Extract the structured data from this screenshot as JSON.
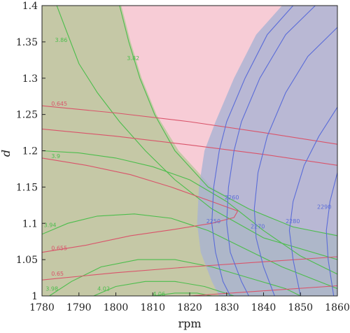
{
  "chart_data": {
    "type": "contour",
    "xlabel": "rpm",
    "ylabel": "d",
    "xlim": [
      1780,
      1860
    ],
    "ylim": [
      1.0,
      1.4
    ],
    "x_ticks": [
      "1780",
      "1790",
      "1800",
      "1810",
      "1820",
      "1830",
      "1840",
      "1850",
      "1860"
    ],
    "y_ticks": [
      "1",
      "1.05",
      "1.1",
      "1.15",
      "1.2",
      "1.25",
      "1.3",
      "1.35",
      "1.4"
    ],
    "colors": {
      "green_region": "#c5c8a6",
      "pink_region": "#f7ccd6",
      "blue_region": "#a8b2d4",
      "purple_region": "#c7b1d6",
      "green_line": "#4cbd4c",
      "red_line": "#d9546a",
      "blue_line": "#5a6cd8"
    },
    "regions": [
      {
        "id": "green",
        "points": [
          [
            1780,
            1.0
          ],
          [
            1780,
            1.4
          ],
          [
            1801.5,
            1.4
          ],
          [
            1804,
            1.35
          ],
          [
            1807,
            1.3
          ],
          [
            1811,
            1.25
          ],
          [
            1817,
            1.2
          ],
          [
            1826,
            1.15
          ],
          [
            1836,
            1.12
          ],
          [
            1845,
            1.1
          ],
          [
            1853,
            1.09
          ],
          [
            1860,
            1.085
          ],
          [
            1860,
            1.0
          ]
        ]
      },
      {
        "id": "blue",
        "points": [
          [
            1845,
            1.4
          ],
          [
            1838,
            1.36
          ],
          [
            1832,
            1.3
          ],
          [
            1827,
            1.24
          ],
          [
            1824,
            1.2
          ],
          [
            1822.5,
            1.15
          ],
          [
            1822,
            1.1
          ],
          [
            1823,
            1.06
          ],
          [
            1826,
            1.02
          ],
          [
            1828,
            1.0
          ],
          [
            1860,
            1.0
          ],
          [
            1860,
            1.4
          ]
        ]
      }
    ],
    "green_contours": [
      {
        "label": "3.86",
        "points": [
          [
            1784,
            1.4
          ],
          [
            1787,
            1.36
          ],
          [
            1790,
            1.32
          ],
          [
            1795,
            1.28
          ],
          [
            1801,
            1.24
          ],
          [
            1808,
            1.2
          ],
          [
            1816,
            1.16
          ],
          [
            1826,
            1.12
          ],
          [
            1840,
            1.08
          ],
          [
            1860,
            1.05
          ]
        ]
      },
      {
        "label": "3.82",
        "points": [
          [
            1801,
            1.4
          ],
          [
            1803.5,
            1.35
          ],
          [
            1806.5,
            1.3
          ],
          [
            1810.5,
            1.25
          ],
          [
            1816,
            1.2
          ],
          [
            1825,
            1.15
          ],
          [
            1836,
            1.12
          ],
          [
            1848,
            1.095
          ],
          [
            1860,
            1.083
          ]
        ]
      },
      {
        "label": "3.9",
        "points": [
          [
            1780,
            1.2
          ],
          [
            1790,
            1.197
          ],
          [
            1800,
            1.19
          ],
          [
            1810,
            1.178
          ],
          [
            1820,
            1.16
          ],
          [
            1830,
            1.13
          ],
          [
            1840,
            1.09
          ],
          [
            1850,
            1.055
          ],
          [
            1860,
            1.03
          ]
        ]
      },
      {
        "label": "3.94",
        "points": [
          [
            1780,
            1.085
          ],
          [
            1787,
            1.1
          ],
          [
            1795,
            1.11
          ],
          [
            1805,
            1.113
          ],
          [
            1815,
            1.107
          ],
          [
            1825,
            1.09
          ],
          [
            1835,
            1.065
          ],
          [
            1845,
            1.04
          ],
          [
            1855,
            1.02
          ],
          [
            1860,
            1.01
          ]
        ]
      },
      {
        "label": "3.98",
        "points": [
          [
            1782,
            1.0
          ],
          [
            1788,
            1.02
          ],
          [
            1796,
            1.04
          ],
          [
            1806,
            1.05
          ],
          [
            1816,
            1.05
          ],
          [
            1826,
            1.04
          ],
          [
            1836,
            1.025
          ],
          [
            1846,
            1.01
          ],
          [
            1850,
            1.0
          ]
        ]
      },
      {
        "label": "4.02",
        "points": [
          [
            1794,
            1.0
          ],
          [
            1800,
            1.013
          ],
          [
            1808,
            1.02
          ],
          [
            1816,
            1.02
          ],
          [
            1824,
            1.013
          ],
          [
            1832,
            1.0
          ]
        ]
      },
      {
        "label": "4.06",
        "points": [
          [
            1810,
            1.0
          ],
          [
            1816,
            1.004
          ],
          [
            1822,
            1.004
          ],
          [
            1826,
            1.0
          ]
        ]
      }
    ],
    "red_contours": [
      {
        "label": "0.645",
        "points": [
          [
            1780,
            1.262
          ],
          [
            1800,
            1.252
          ],
          [
            1820,
            1.24
          ],
          [
            1840,
            1.225
          ],
          [
            1860,
            1.209
          ]
        ]
      },
      {
        "label": "",
        "points": [
          [
            1780,
            1.23
          ],
          [
            1800,
            1.22
          ],
          [
            1820,
            1.208
          ],
          [
            1840,
            1.195
          ],
          [
            1860,
            1.18
          ]
        ]
      },
      {
        "label": "0.655",
        "points": [
          [
            1780,
            1.19
          ],
          [
            1792,
            1.18
          ],
          [
            1804,
            1.167
          ],
          [
            1815,
            1.15
          ],
          [
            1826,
            1.13
          ],
          [
            1833,
            1.117
          ],
          [
            1832,
            1.108
          ],
          [
            1826,
            1.1
          ],
          [
            1815,
            1.091
          ],
          [
            1804,
            1.083
          ],
          [
            1792,
            1.07
          ],
          [
            1780,
            1.06
          ]
        ]
      },
      {
        "label": "0.65",
        "points": [
          [
            1780,
            1.022
          ],
          [
            1800,
            1.032
          ],
          [
            1820,
            1.04
          ],
          [
            1840,
            1.047
          ],
          [
            1860,
            1.054
          ]
        ]
      },
      {
        "label": "",
        "points": [
          [
            1820,
            1.0
          ],
          [
            1840,
            1.007
          ],
          [
            1860,
            1.014
          ]
        ]
      }
    ],
    "blue_contours": [
      {
        "label": "2260",
        "points": [
          [
            1848,
            1.4
          ],
          [
            1841,
            1.36
          ],
          [
            1835,
            1.3
          ],
          [
            1830,
            1.24
          ],
          [
            1828,
            1.2
          ],
          [
            1826.5,
            1.15
          ],
          [
            1826,
            1.1
          ],
          [
            1827,
            1.06
          ],
          [
            1829,
            1.02
          ],
          [
            1831,
            1.0
          ]
        ]
      },
      {
        "label": "2250",
        "points": [
          [
            1854,
            1.4
          ],
          [
            1846,
            1.36
          ],
          [
            1839,
            1.3
          ],
          [
            1834,
            1.24
          ],
          [
            1832,
            1.2
          ],
          [
            1830.5,
            1.15
          ],
          [
            1830,
            1.1
          ],
          [
            1831,
            1.06
          ],
          [
            1834,
            1.02
          ],
          [
            1836,
            1.0
          ]
        ]
      },
      {
        "label": "2270",
        "points": [
          [
            1860,
            1.37
          ],
          [
            1852,
            1.33
          ],
          [
            1846,
            1.28
          ],
          [
            1841,
            1.22
          ],
          [
            1838.5,
            1.17
          ],
          [
            1837.5,
            1.12
          ],
          [
            1838,
            1.08
          ],
          [
            1840,
            1.04
          ],
          [
            1843,
            1.0
          ]
        ]
      },
      {
        "label": "2280",
        "points": [
          [
            1860,
            1.26
          ],
          [
            1855,
            1.22
          ],
          [
            1851,
            1.18
          ],
          [
            1848,
            1.13
          ],
          [
            1847,
            1.09
          ],
          [
            1848,
            1.05
          ],
          [
            1850,
            1.0
          ]
        ]
      },
      {
        "label": "2290",
        "points": [
          [
            1860,
            1.17
          ],
          [
            1858,
            1.13
          ],
          [
            1857,
            1.09
          ],
          [
            1857.5,
            1.05
          ],
          [
            1859,
            1.0
          ]
        ]
      }
    ],
    "labels": [
      {
        "text": "3.86",
        "x": 1783.5,
        "y": 1.35,
        "color": "#4cbd4c"
      },
      {
        "text": "3.82",
        "x": 1803,
        "y": 1.325,
        "color": "#4cbd4c"
      },
      {
        "text": "3.9",
        "x": 1782.5,
        "y": 1.19,
        "color": "#4cbd4c"
      },
      {
        "text": "3.94",
        "x": 1780.5,
        "y": 1.095,
        "color": "#4cbd4c"
      },
      {
        "text": "3.98",
        "x": 1781,
        "y": 1.007,
        "color": "#4cbd4c"
      },
      {
        "text": "4.02",
        "x": 1795,
        "y": 1.007,
        "color": "#4cbd4c"
      },
      {
        "text": "4.06",
        "x": 1810,
        "y": 1.0,
        "color": "#4cbd4c"
      },
      {
        "text": "0.645",
        "x": 1782.5,
        "y": 1.262,
        "color": "#d9546a"
      },
      {
        "text": "0.655",
        "x": 1782.5,
        "y": 1.063,
        "color": "#d9546a"
      },
      {
        "text": "0.65",
        "x": 1782.5,
        "y": 1.028,
        "color": "#d9546a"
      },
      {
        "text": "2260",
        "x": 1829.5,
        "y": 1.133,
        "color": "#5a6cd8"
      },
      {
        "text": "2250",
        "x": 1824.5,
        "y": 1.1,
        "color": "#5a6cd8"
      },
      {
        "text": "2270",
        "x": 1836.5,
        "y": 1.093,
        "color": "#5a6cd8"
      },
      {
        "text": "2280",
        "x": 1846,
        "y": 1.1,
        "color": "#5a6cd8"
      },
      {
        "text": "2290",
        "x": 1854.5,
        "y": 1.12,
        "color": "#5a6cd8"
      }
    ]
  }
}
